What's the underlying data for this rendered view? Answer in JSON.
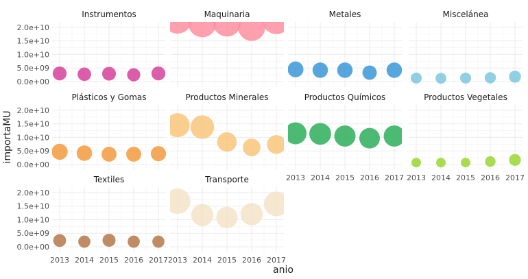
{
  "chart_data": {
    "type": "scatter",
    "xlabel": "anio",
    "ylabel": "importaMU",
    "x_ticks": [
      "2013",
      "2014",
      "2015",
      "2016",
      "2017"
    ],
    "y_ticks": [
      "0.0e+00",
      "5.0e+09",
      "1.0e+10",
      "1.5e+10",
      "2.0e+10"
    ],
    "ylim": [
      0,
      24000000000
    ],
    "size_legend": "none",
    "grid": true,
    "facets": [
      {
        "name": "Instrumentos",
        "color": "#d6419b",
        "x": [
          2013,
          2014,
          2015,
          2016,
          2017
        ],
        "y": [
          3000000000,
          2700000000,
          2900000000,
          2500000000,
          3000000000
        ]
      },
      {
        "name": "Maquinaria",
        "color": "#ff8fa0",
        "x": [
          2013,
          2014,
          2015,
          2016,
          2017
        ],
        "y": [
          23000000000,
          21500000000,
          21800000000,
          20000000000,
          22800000000
        ]
      },
      {
        "name": "Metales",
        "color": "#3a96d8",
        "x": [
          2013,
          2014,
          2015,
          2016,
          2017
        ],
        "y": [
          4500000000,
          4200000000,
          4200000000,
          3300000000,
          4200000000
        ]
      },
      {
        "name": "Miscelánea",
        "color": "#7cc8dd",
        "x": [
          2013,
          2014,
          2015,
          2016,
          2017
        ],
        "y": [
          1300000000,
          1200000000,
          1300000000,
          1400000000,
          1800000000
        ]
      },
      {
        "name": "Plásticos y Gomas",
        "color": "#f39a3d",
        "x": [
          2013,
          2014,
          2015,
          2016,
          2017
        ],
        "y": [
          4700000000,
          4200000000,
          3800000000,
          3800000000,
          4000000000
        ]
      },
      {
        "name": "Productos Minerales",
        "color": "#f8c67a",
        "x": [
          2013,
          2014,
          2015,
          2016,
          2017
        ],
        "y": [
          14500000000,
          13800000000,
          8300000000,
          6300000000,
          7400000000
        ]
      },
      {
        "name": "Productos Químicos",
        "color": "#2eae5c",
        "x": [
          2013,
          2014,
          2015,
          2016,
          2017
        ],
        "y": [
          11500000000,
          11300000000,
          10500000000,
          9700000000,
          10500000000
        ]
      },
      {
        "name": "Productos Vegetales",
        "color": "#9bd634",
        "x": [
          2013,
          2014,
          2015,
          2016,
          2017
        ],
        "y": [
          700000000,
          700000000,
          700000000,
          1100000000,
          1700000000
        ]
      },
      {
        "name": "Textiles",
        "color": "#b5784a",
        "x": [
          2013,
          2014,
          2015,
          2016,
          2017
        ],
        "y": [
          2300000000,
          1900000000,
          2400000000,
          1900000000,
          1900000000
        ]
      },
      {
        "name": "Transporte",
        "color": "#f5e4c8",
        "x": [
          2013,
          2014,
          2015,
          2016,
          2017
        ],
        "y": [
          16800000000,
          11700000000,
          10800000000,
          12000000000,
          15800000000
        ]
      }
    ]
  }
}
